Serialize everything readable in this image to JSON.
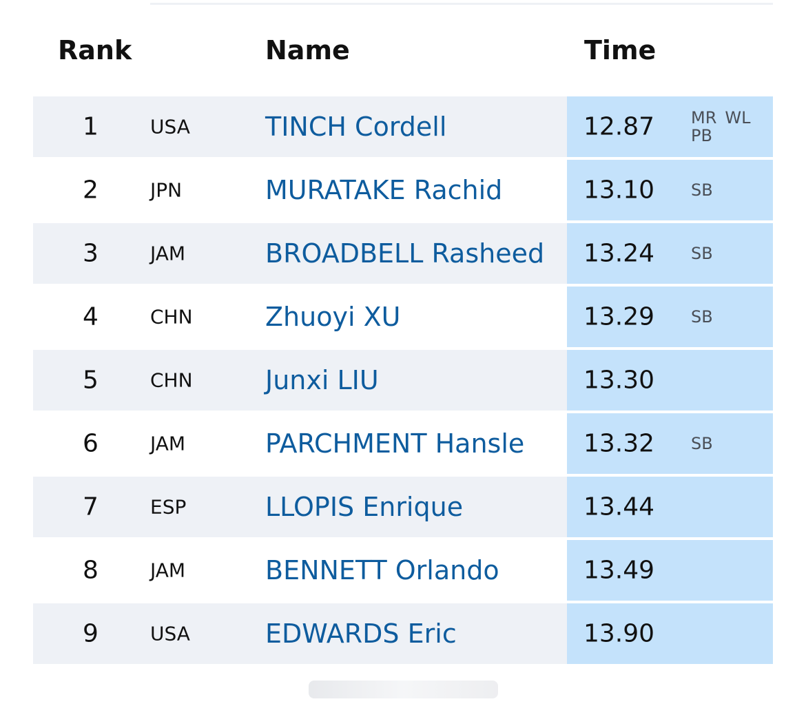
{
  "header": {
    "rank": "Rank",
    "name": "Name",
    "time": "Time"
  },
  "rows": [
    {
      "rank": "1",
      "country": "USA",
      "name": "TINCH Cordell",
      "time": "12.87",
      "marks": [
        "MR",
        "WL",
        "PB"
      ]
    },
    {
      "rank": "2",
      "country": "JPN",
      "name": "MURATAKE Rachid",
      "time": "13.10",
      "marks": [
        "SB"
      ]
    },
    {
      "rank": "3",
      "country": "JAM",
      "name": "BROADBELL Rasheed",
      "time": "13.24",
      "marks": [
        "SB"
      ]
    },
    {
      "rank": "4",
      "country": "CHN",
      "name": "Zhuoyi XU",
      "time": "13.29",
      "marks": [
        "SB"
      ]
    },
    {
      "rank": "5",
      "country": "CHN",
      "name": "Junxi LIU",
      "time": "13.30",
      "marks": []
    },
    {
      "rank": "6",
      "country": "JAM",
      "name": "PARCHMENT Hansle",
      "time": "13.32",
      "marks": [
        "SB"
      ]
    },
    {
      "rank": "7",
      "country": "ESP",
      "name": "LLOPIS Enrique",
      "time": "13.44",
      "marks": []
    },
    {
      "rank": "8",
      "country": "JAM",
      "name": "BENNETT Orlando",
      "time": "13.49",
      "marks": []
    },
    {
      "rank": "9",
      "country": "USA",
      "name": "EDWARDS Eric",
      "time": "13.90",
      "marks": []
    }
  ],
  "colors": {
    "name_link": "#0e5c9e",
    "time_column_bg": "#c4e2fb",
    "stripe_bg": "#eef1f6"
  }
}
